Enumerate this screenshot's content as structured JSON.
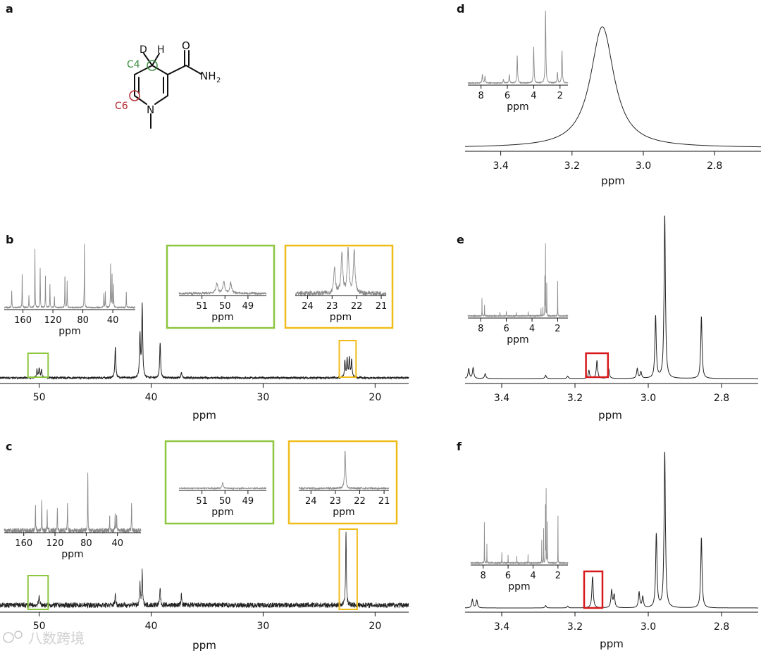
{
  "panels": {
    "a": {
      "label": "a"
    },
    "b": {
      "label": "b"
    },
    "c": {
      "label": "c"
    },
    "d": {
      "label": "d"
    },
    "e": {
      "label": "e"
    },
    "f": {
      "label": "f"
    }
  },
  "molecule": {
    "atoms": {
      "D": "D",
      "H": "H",
      "O": "O",
      "N": "N",
      "NH2": "NH",
      "NH2_sub": "2"
    },
    "site_labels": {
      "C4": "C4",
      "C6": "C6"
    }
  },
  "colors": {
    "green_box": "#8dc63f",
    "yellow_box": "#f0bc1a",
    "red_box": "#d7191c",
    "c4_site": "#3a8c3f",
    "c6_site": "#b02a30",
    "trace_main": "#222222",
    "trace_inset": "#8a8a8a"
  },
  "watermark": {
    "text": "八数跨境"
  },
  "chart_data": [
    {
      "id": "b",
      "type": "line",
      "xlabel": "ppm",
      "xlim": [
        53.5,
        17
      ],
      "x_ticks": [
        "50",
        "40",
        "30",
        "20"
      ],
      "peaks": [
        {
          "x": 50.2,
          "h": 0.09
        },
        {
          "x": 50.0,
          "h": 0.11
        },
        {
          "x": 49.8,
          "h": 0.09
        },
        {
          "x": 43.2,
          "h": 0.35
        },
        {
          "x": 41.0,
          "h": 0.48
        },
        {
          "x": 40.8,
          "h": 0.83
        },
        {
          "x": 39.2,
          "h": 0.4
        },
        {
          "x": 37.3,
          "h": 0.06
        },
        {
          "x": 22.7,
          "h": 0.18
        },
        {
          "x": 22.5,
          "h": 0.21
        },
        {
          "x": 22.3,
          "h": 0.22
        },
        {
          "x": 22.1,
          "h": 0.2
        }
      ],
      "noise": 0.01,
      "highlights": [
        {
          "color": "green",
          "xrange": [
            51,
            49.2
          ]
        },
        {
          "color": "yellow",
          "xrange": [
            23.2,
            21.7
          ]
        }
      ],
      "insets": [
        {
          "xlabel": "ppm",
          "xlim": [
            185,
            10
          ],
          "x_ticks": [
            "160",
            "120",
            "80",
            "40"
          ],
          "peaks": [
            {
              "x": 175,
              "h": 0.28
            },
            {
              "x": 161,
              "h": 0.55
            },
            {
              "x": 152,
              "h": 0.2
            },
            {
              "x": 144,
              "h": 0.88
            },
            {
              "x": 137,
              "h": 0.6
            },
            {
              "x": 130,
              "h": 0.48
            },
            {
              "x": 124,
              "h": 0.37
            },
            {
              "x": 118,
              "h": 0.18
            },
            {
              "x": 104,
              "h": 0.52
            },
            {
              "x": 101,
              "h": 0.4
            },
            {
              "x": 78,
              "h": 1.0
            },
            {
              "x": 52,
              "h": 0.22
            },
            {
              "x": 50,
              "h": 0.25
            },
            {
              "x": 43,
              "h": 0.68
            },
            {
              "x": 41,
              "h": 0.55
            },
            {
              "x": 39,
              "h": 0.35
            },
            {
              "x": 22,
              "h": 0.24
            }
          ],
          "noise": 0.008
        },
        {
          "xlabel": "ppm",
          "xlim": [
            52,
            48.2
          ],
          "x_ticks": [
            "51",
            "50",
            "49"
          ],
          "peaks": [
            {
              "x": 50.35,
              "h": 0.45
            },
            {
              "x": 50.05,
              "h": 0.5
            },
            {
              "x": 49.75,
              "h": 0.45
            }
          ],
          "noise": 0.05
        },
        {
          "xlabel": "ppm",
          "xlim": [
            24.5,
            20.8
          ],
          "x_ticks": [
            "24",
            "23",
            "22",
            "21"
          ],
          "peaks": [
            {
              "x": 22.9,
              "h": 0.55
            },
            {
              "x": 22.6,
              "h": 0.85
            },
            {
              "x": 22.35,
              "h": 0.9
            },
            {
              "x": 22.1,
              "h": 0.85
            }
          ],
          "noise": 0.05
        }
      ]
    },
    {
      "id": "c",
      "type": "line",
      "xlabel": "ppm",
      "xlim": [
        53.5,
        17
      ],
      "x_ticks": [
        "50",
        "40",
        "30",
        "20"
      ],
      "peaks": [
        {
          "x": 50.0,
          "h": 0.16
        },
        {
          "x": 43.2,
          "h": 0.16
        },
        {
          "x": 41.0,
          "h": 0.3
        },
        {
          "x": 40.8,
          "h": 0.45
        },
        {
          "x": 39.2,
          "h": 0.25
        },
        {
          "x": 37.3,
          "h": 0.14
        },
        {
          "x": 22.6,
          "h": 1.0
        }
      ],
      "noise": 0.035,
      "highlights": [
        {
          "color": "green",
          "xrange": [
            51,
            49.2
          ]
        },
        {
          "color": "yellow",
          "xrange": [
            23.2,
            21.6
          ]
        }
      ],
      "insets": [
        {
          "xlabel": "ppm",
          "xlim": [
            185,
            10
          ],
          "x_ticks": [
            "160",
            "120",
            "80",
            "40"
          ],
          "peaks": [
            {
              "x": 145,
              "h": 0.45
            },
            {
              "x": 137,
              "h": 0.55
            },
            {
              "x": 130,
              "h": 0.35
            },
            {
              "x": 117,
              "h": 0.42
            },
            {
              "x": 104,
              "h": 0.48
            },
            {
              "x": 78,
              "h": 1.0
            },
            {
              "x": 50,
              "h": 0.25
            },
            {
              "x": 43,
              "h": 0.32
            },
            {
              "x": 41,
              "h": 0.3
            },
            {
              "x": 22,
              "h": 0.52
            }
          ],
          "noise": 0.04
        },
        {
          "xlabel": "ppm",
          "xlim": [
            52,
            48.2
          ],
          "x_ticks": [
            "51",
            "50",
            "49"
          ],
          "peaks": [
            {
              "x": 50.1,
              "h": 0.35
            }
          ],
          "noise": 0.04
        },
        {
          "xlabel": "ppm",
          "xlim": [
            24.5,
            20.8
          ],
          "x_ticks": [
            "24",
            "23",
            "22",
            "21"
          ],
          "peaks": [
            {
              "x": 22.6,
              "h": 1.0
            }
          ],
          "noise": 0.025
        }
      ]
    },
    {
      "id": "d",
      "type": "line",
      "xlabel": "ppm",
      "xlim": [
        3.5,
        2.67
      ],
      "x_ticks": [
        "3.4",
        "3.2",
        "3.0",
        "2.8"
      ],
      "lorentzians": [
        {
          "x": 3.115,
          "h": 1.0,
          "w": 0.04
        }
      ],
      "insets": [
        {
          "xlabel": "ppm",
          "xlim": [
            9,
            1.4
          ],
          "x_ticks": [
            "8",
            "6",
            "4",
            "2"
          ],
          "peaks": [
            {
              "x": 7.9,
              "h": 0.12
            },
            {
              "x": 7.7,
              "h": 0.09
            },
            {
              "x": 6.3,
              "h": 0.05
            },
            {
              "x": 5.85,
              "h": 0.12
            },
            {
              "x": 5.25,
              "h": 0.38
            },
            {
              "x": 4.0,
              "h": 0.5
            },
            {
              "x": 3.1,
              "h": 1.0
            },
            {
              "x": 2.2,
              "h": 0.15
            },
            {
              "x": 1.85,
              "h": 0.45
            }
          ],
          "noise": 0.004
        }
      ]
    },
    {
      "id": "e",
      "type": "line",
      "xlabel": "ppm",
      "xlim": [
        3.5,
        2.7
      ],
      "x_ticks": [
        "3.4",
        "3.2",
        "3.0",
        "2.8"
      ],
      "peaks": [
        {
          "x": 3.49,
          "h": 0.06
        },
        {
          "x": 3.478,
          "h": 0.065
        },
        {
          "x": 3.445,
          "h": 0.03
        },
        {
          "x": 3.28,
          "h": 0.02
        },
        {
          "x": 3.22,
          "h": 0.015
        },
        {
          "x": 3.162,
          "h": 0.05
        },
        {
          "x": 3.14,
          "h": 0.11
        },
        {
          "x": 3.108,
          "h": 0.06
        },
        {
          "x": 3.03,
          "h": 0.06
        },
        {
          "x": 3.02,
          "h": 0.04
        },
        {
          "x": 2.98,
          "h": 0.38
        },
        {
          "x": 2.955,
          "h": 1.0
        },
        {
          "x": 2.855,
          "h": 0.38
        }
      ],
      "highlights": [
        {
          "color": "red",
          "xrange": [
            3.17,
            3.11
          ]
        }
      ],
      "insets": [
        {
          "xlabel": "ppm",
          "xlim": [
            9,
            1.2
          ],
          "x_ticks": [
            "8",
            "6",
            "4",
            "2"
          ],
          "peaks": [
            {
              "x": 7.9,
              "h": 0.25
            },
            {
              "x": 7.7,
              "h": 0.15
            },
            {
              "x": 6.5,
              "h": 0.06
            },
            {
              "x": 6.0,
              "h": 0.07
            },
            {
              "x": 5.2,
              "h": 0.05
            },
            {
              "x": 4.3,
              "h": 0.06
            },
            {
              "x": 3.3,
              "h": 0.1
            },
            {
              "x": 3.15,
              "h": 0.12
            },
            {
              "x": 3.0,
              "h": 0.52
            },
            {
              "x": 2.95,
              "h": 1.0
            },
            {
              "x": 2.85,
              "h": 0.45
            },
            {
              "x": 2.0,
              "h": 0.48
            }
          ],
          "noise": 0.004
        }
      ]
    },
    {
      "id": "f",
      "type": "line",
      "xlabel": "ppm",
      "xlim": [
        3.5,
        2.7
      ],
      "x_ticks": [
        "3.4",
        "3.2",
        "3.0",
        "2.8"
      ],
      "peaks": [
        {
          "x": 3.48,
          "h": 0.055
        },
        {
          "x": 3.468,
          "h": 0.05
        },
        {
          "x": 3.28,
          "h": 0.015
        },
        {
          "x": 3.22,
          "h": 0.012
        },
        {
          "x": 3.152,
          "h": 0.2
        },
        {
          "x": 3.1,
          "h": 0.11
        },
        {
          "x": 3.093,
          "h": 0.08
        },
        {
          "x": 3.025,
          "h": 0.1
        },
        {
          "x": 3.015,
          "h": 0.07
        },
        {
          "x": 2.978,
          "h": 0.47
        },
        {
          "x": 2.955,
          "h": 1.0
        },
        {
          "x": 2.855,
          "h": 0.45
        }
      ],
      "highlights": [
        {
          "color": "red",
          "xrange": [
            3.175,
            3.125
          ]
        }
      ],
      "insets": [
        {
          "xlabel": "ppm",
          "xlim": [
            9,
            1.2
          ],
          "x_ticks": [
            "8",
            "6",
            "4",
            "2"
          ],
          "peaks": [
            {
              "x": 7.9,
              "h": 0.55
            },
            {
              "x": 7.7,
              "h": 0.25
            },
            {
              "x": 6.5,
              "h": 0.15
            },
            {
              "x": 6.0,
              "h": 0.12
            },
            {
              "x": 5.3,
              "h": 0.1
            },
            {
              "x": 4.4,
              "h": 0.12
            },
            {
              "x": 3.3,
              "h": 0.3
            },
            {
              "x": 3.15,
              "h": 0.45
            },
            {
              "x": 3.0,
              "h": 0.75
            },
            {
              "x": 2.95,
              "h": 1.0
            },
            {
              "x": 2.85,
              "h": 0.55
            },
            {
              "x": 2.0,
              "h": 0.62
            }
          ],
          "noise": 0.006
        }
      ]
    }
  ]
}
